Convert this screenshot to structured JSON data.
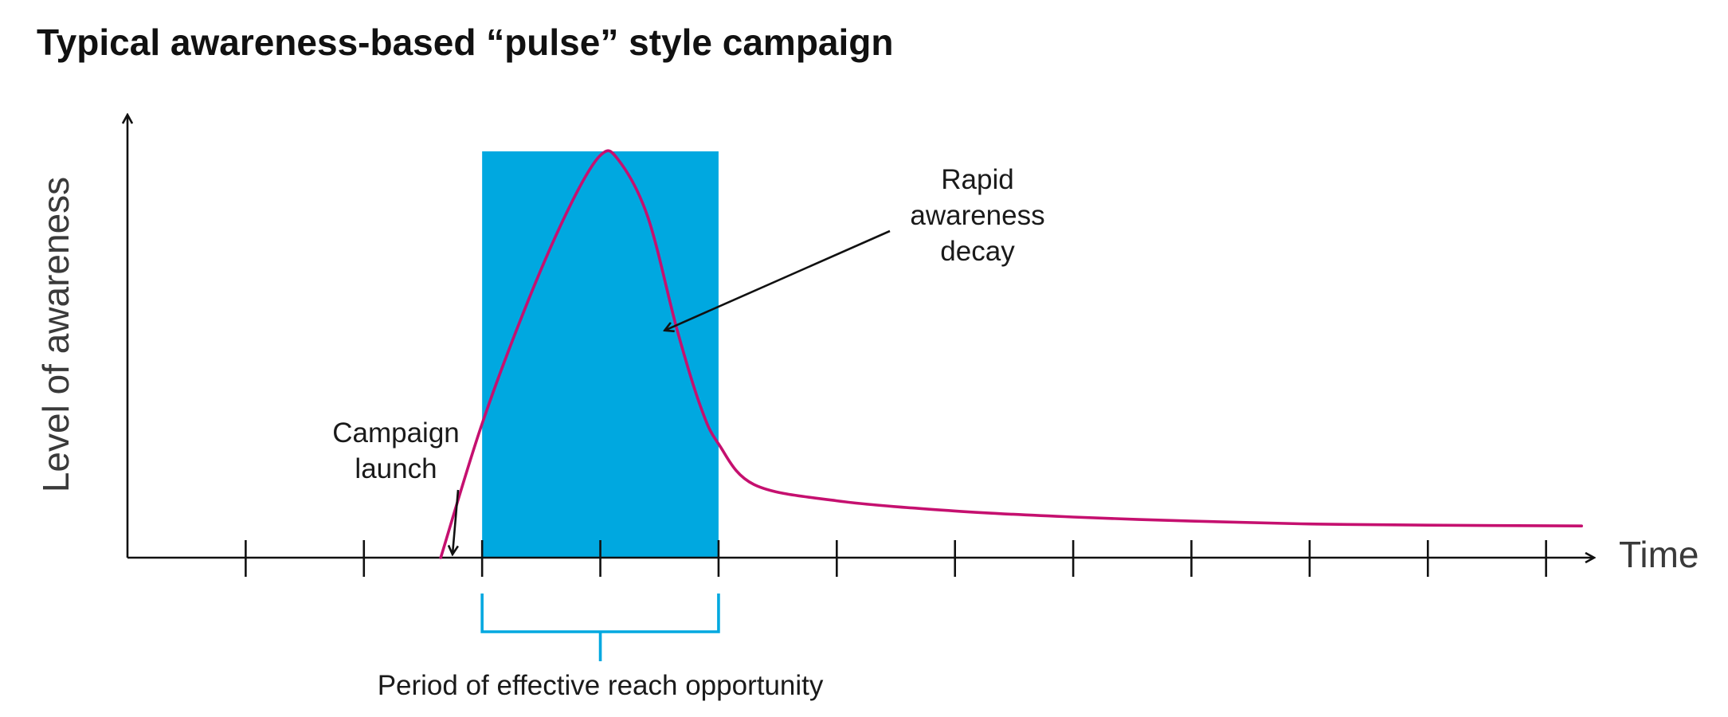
{
  "chart_data": {
    "type": "line",
    "title": "Typical awareness-based “pulse” style campaign",
    "xlabel": "Time",
    "ylabel": "Level of awareness",
    "x_ticks": 12,
    "xlim": [
      0,
      12.4
    ],
    "ylim": [
      0,
      1
    ],
    "grid": false,
    "legend": "none",
    "highlight_period": {
      "start": 3,
      "end": 5,
      "color": "#00a8e0",
      "label": "Period of effective reach opportunity"
    },
    "series": [
      {
        "color": "#c5106f",
        "points": [
          [
            2.65,
            0.0
          ],
          [
            3.0,
            0.33
          ],
          [
            3.4,
            0.64
          ],
          [
            3.75,
            0.87
          ],
          [
            4.0,
            0.99
          ],
          [
            4.15,
            0.98
          ],
          [
            4.4,
            0.84
          ],
          [
            4.65,
            0.56
          ],
          [
            4.85,
            0.37
          ],
          [
            5.0,
            0.28
          ],
          [
            5.3,
            0.18
          ],
          [
            6.0,
            0.14
          ],
          [
            7.0,
            0.115
          ],
          [
            8.0,
            0.1
          ],
          [
            9.0,
            0.09
          ],
          [
            10.0,
            0.083
          ],
          [
            11.0,
            0.08
          ],
          [
            12.3,
            0.078
          ]
        ]
      }
    ],
    "annotations": [
      {
        "name": "campaign-launch",
        "lines": [
          "Campaign",
          "launch"
        ],
        "x": 2.75,
        "y": 0.01
      },
      {
        "name": "rapid-decay",
        "lines": [
          "Rapid",
          "awareness",
          "decay"
        ],
        "x": 4.55,
        "y": 0.56
      }
    ]
  }
}
